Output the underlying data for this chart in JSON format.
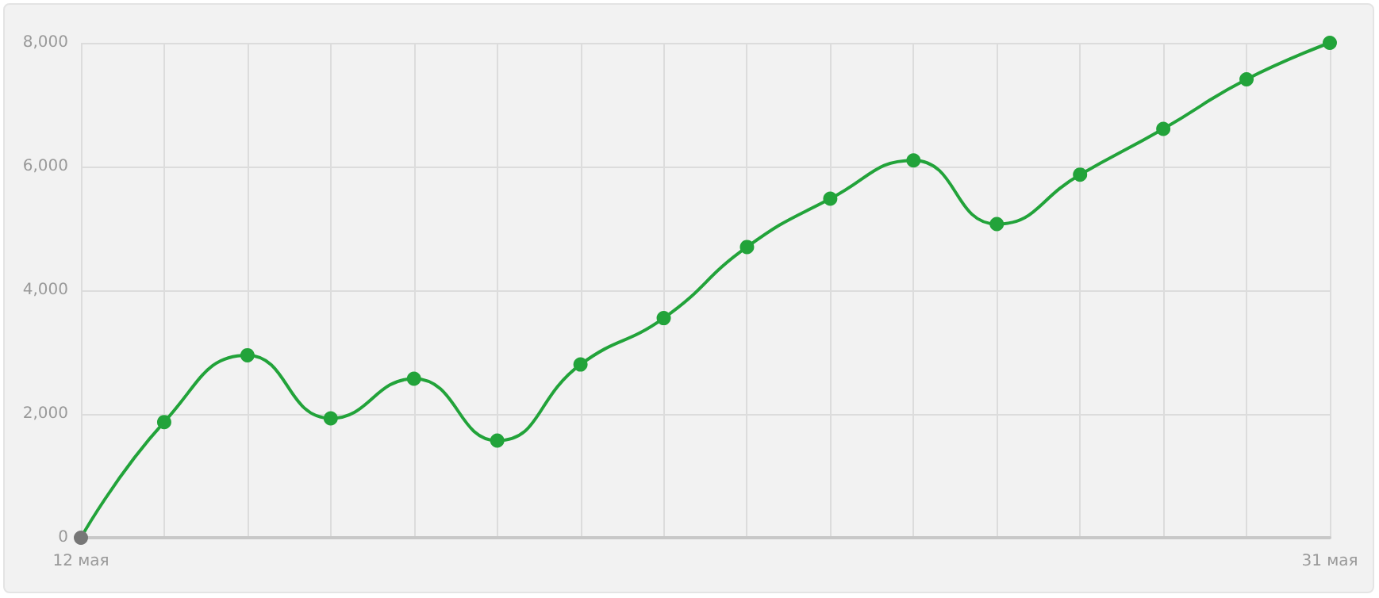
{
  "chart_data": {
    "type": "line",
    "categories": [
      "12 мая",
      null,
      null,
      null,
      null,
      null,
      null,
      null,
      null,
      null,
      null,
      null,
      null,
      null,
      null,
      "31 мая"
    ],
    "series": [
      {
        "color": "#22a33a",
        "colors": [
          "#777777",
          "#22a33a",
          "#22a33a",
          "#22a33a",
          "#22a33a",
          "#22a33a",
          "#22a33a",
          "#22a33a",
          "#22a33a",
          "#22a33a",
          "#22a33a",
          "#22a33a",
          "#22a33a",
          "#22a33a",
          "#22a33a",
          "#22a33a"
        ],
        "values": [
          0,
          1870,
          2950,
          1930,
          2570,
          1570,
          2800,
          3550,
          4700,
          5480,
          6100,
          5070,
          5870,
          6610,
          7410,
          8000
        ]
      }
    ],
    "ylim": [
      0,
      8000
    ],
    "yticks": [
      0,
      {
        "value": 2000,
        "label": "2,000"
      },
      {
        "value": 4000,
        "label": "4,000"
      },
      {
        "value": 6000,
        "label": "6,000"
      },
      {
        "value": 8000,
        "label": "8,000"
      }
    ],
    "grid": true,
    "marker": "circle",
    "line_style": "solid"
  }
}
